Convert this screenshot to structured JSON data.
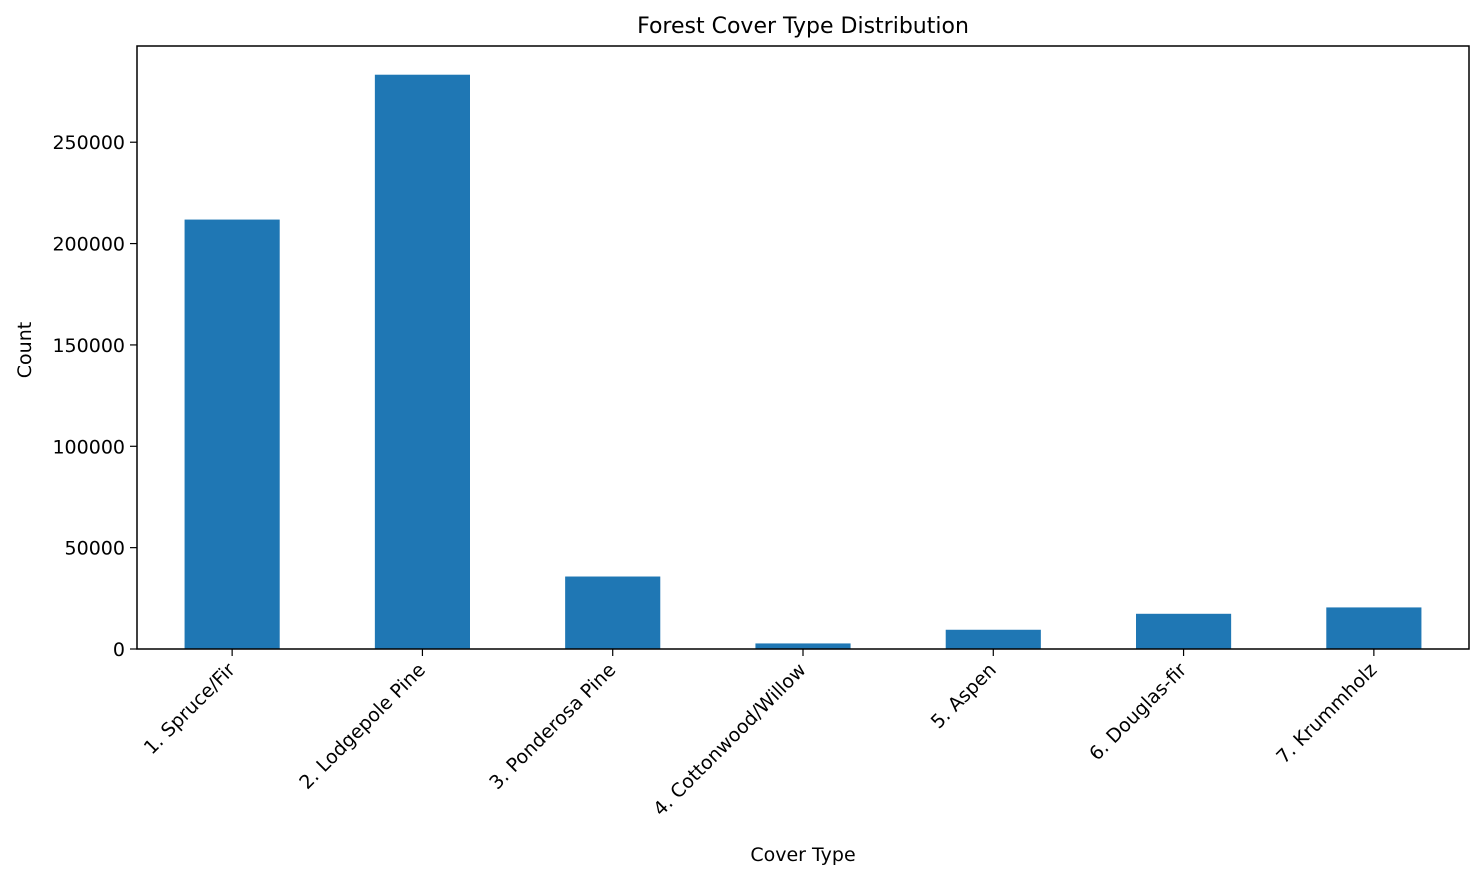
{
  "chart_data": {
    "type": "bar",
    "title": "Forest Cover Type Distribution",
    "xlabel": "Cover Type",
    "ylabel": "Count",
    "categories": [
      "1. Spruce/Fir",
      "2. Lodgepole Pine",
      "3. Ponderosa Pine",
      "4. Cottonwood/Willow",
      "5. Aspen",
      "6. Douglas-fir",
      "7. Krummholz"
    ],
    "values": [
      211840,
      283301,
      35754,
      2747,
      9493,
      17367,
      20510
    ],
    "ylim": [
      0,
      297466
    ],
    "yticks": [
      0,
      50000,
      100000,
      150000,
      200000,
      250000
    ],
    "ytick_labels": [
      "0",
      "50000",
      "100000",
      "150000",
      "200000",
      "250000"
    ],
    "bar_color": "#1f77b4",
    "grid": false,
    "legend": "none"
  }
}
